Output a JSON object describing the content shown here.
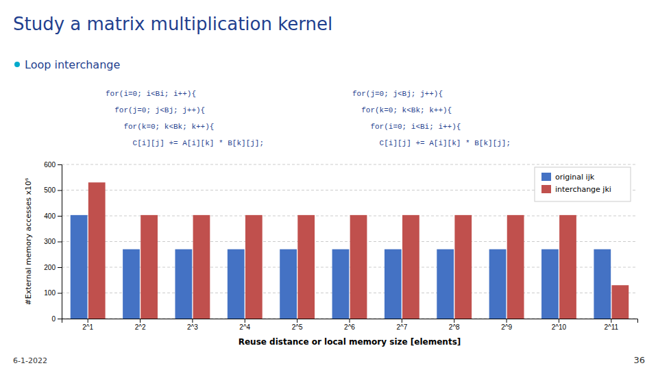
{
  "chart_data": {
    "type": "bar",
    "title": "Study a matrix multiplication kernel",
    "x_label": "Reuse distance or local memory size [elements]",
    "y_label": "#External memory accesses x10⁶",
    "categories": [
      "2^1",
      "2^2",
      "2^3",
      "2^4",
      "2^5",
      "2^6",
      "2^7",
      "2^8",
      "2^9",
      "2^10",
      "2^11"
    ],
    "series": [
      {
        "name": "original ijk",
        "color": "#4472C4",
        "values": [
          403,
          270,
          270,
          270,
          270,
          270,
          270,
          270,
          270,
          270,
          270
        ]
      },
      {
        "name": "interchange jki",
        "color": "#C0504D",
        "values": [
          530,
          403,
          403,
          403,
          403,
          403,
          403,
          403,
          403,
          403,
          130
        ]
      }
    ],
    "ylim": [
      0,
      600
    ],
    "yticks": [
      0,
      100,
      200,
      300,
      400,
      500,
      600
    ],
    "grid": true,
    "legend": "upper right",
    "annotations": [
      "Loop interchange",
      "for(i=0; i<Bi; i++){",
      "  for(j=0; j<Bj; j++){",
      "    for(k=0; k<Bk; k++){",
      "      C[i][j] += A[i][k] * B[k][j];",
      "for(j=0; j<Bj; j++){",
      "  for(k=0; k<Bk; k++){",
      "    for(i=0; i<Bi; i++){",
      "      C[i][j] += A[i][k] * B[k][j];",
      "6-1-2022",
      "36"
    ]
  }
}
